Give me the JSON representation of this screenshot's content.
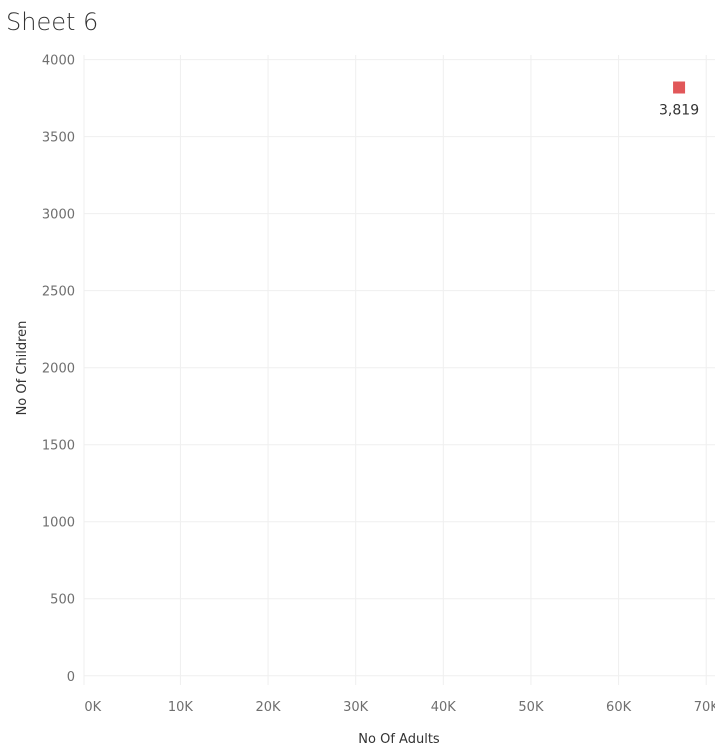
{
  "sheet": {
    "title": "Sheet 6"
  },
  "colors": {
    "mark": "#e15759",
    "grid": "#efefef",
    "axis_text": "#6f6f6f",
    "title_text": "#333333"
  },
  "chart_data": {
    "type": "scatter",
    "title": "Sheet 6",
    "xlabel": "No Of Adults",
    "ylabel": "No Of Children",
    "xlim": [
      -1000,
      71000
    ],
    "ylim": [
      -60,
      4030
    ],
    "x_ticks": [
      {
        "value": 0,
        "label": "0K"
      },
      {
        "value": 10000,
        "label": "10K"
      },
      {
        "value": 20000,
        "label": "20K"
      },
      {
        "value": 30000,
        "label": "30K"
      },
      {
        "value": 40000,
        "label": "40K"
      },
      {
        "value": 50000,
        "label": "50K"
      },
      {
        "value": 60000,
        "label": "60K"
      },
      {
        "value": 70000,
        "label": "70K"
      }
    ],
    "y_ticks": [
      {
        "value": 0,
        "label": "0"
      },
      {
        "value": 500,
        "label": "500"
      },
      {
        "value": 1000,
        "label": "1000"
      },
      {
        "value": 1500,
        "label": "1500"
      },
      {
        "value": 2000,
        "label": "2000"
      },
      {
        "value": 2500,
        "label": "2500"
      },
      {
        "value": 3000,
        "label": "3000"
      },
      {
        "value": 3500,
        "label": "3500"
      },
      {
        "value": 4000,
        "label": "4000"
      }
    ],
    "points": [
      {
        "x": 66900,
        "y": 3819,
        "label": "3,819"
      }
    ],
    "grid": true,
    "legend": "none"
  }
}
